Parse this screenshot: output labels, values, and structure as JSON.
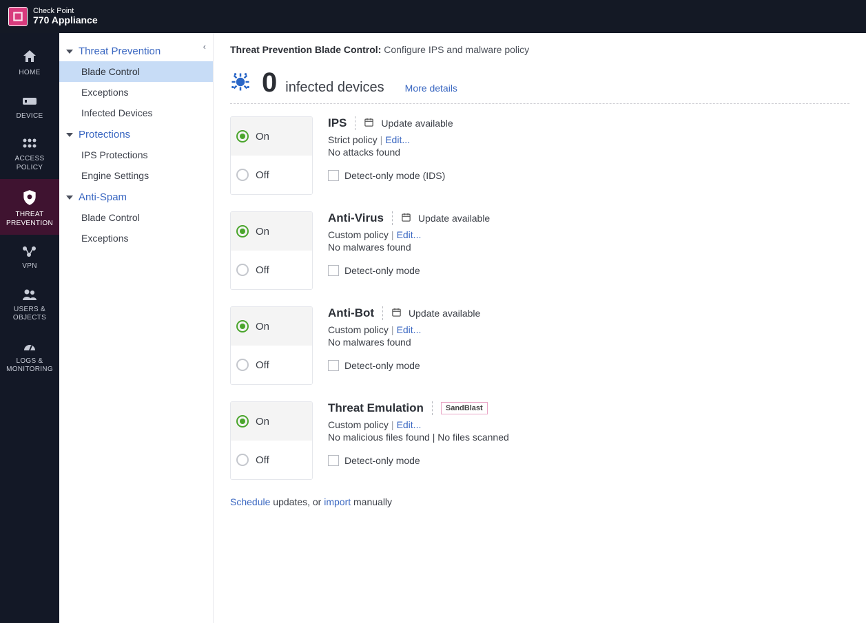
{
  "colors": {
    "topbar_bg": "#141925",
    "mainnav_bg": "#131826",
    "active_nav_bg": "#3f1330",
    "link_color": "#3a67c1",
    "sub_active_bg": "#c7dcf6",
    "radio_selected": "#4aa52c",
    "border": "#e5e7ec"
  },
  "brand": {
    "line1": "Check Point",
    "line2": "770 Appliance"
  },
  "mainnav": [
    {
      "id": "home",
      "label": "HOME"
    },
    {
      "id": "device",
      "label": "DEVICE"
    },
    {
      "id": "access-policy",
      "label": "ACCESS POLICY"
    },
    {
      "id": "threat-prevention",
      "label": "THREAT PREVENTION",
      "active": true
    },
    {
      "id": "vpn",
      "label": "VPN"
    },
    {
      "id": "users-objects",
      "label": "USERS & OBJECTS"
    },
    {
      "id": "logs-monitoring",
      "label": "LOGS & MONITORING"
    }
  ],
  "subnav": {
    "sections": [
      {
        "title": "Threat Prevention",
        "items": [
          {
            "label": "Blade Control",
            "active": true
          },
          {
            "label": "Exceptions"
          },
          {
            "label": "Infected Devices"
          }
        ]
      },
      {
        "title": "Protections",
        "items": [
          {
            "label": "IPS Protections"
          },
          {
            "label": "Engine Settings"
          }
        ]
      },
      {
        "title": "Anti-Spam",
        "items": [
          {
            "label": "Blade Control"
          },
          {
            "label": "Exceptions"
          }
        ]
      }
    ]
  },
  "page": {
    "heading_strong": "Threat Prevention Blade Control:",
    "heading_sub": "Configure IPS and malware policy",
    "infected_count": "0",
    "infected_label": "infected devices",
    "more_details": "More details"
  },
  "toggle_labels": {
    "on": "On",
    "off": "Off"
  },
  "blades": [
    {
      "id": "ips",
      "title": "IPS",
      "update_text": "Update available",
      "policy": "Strict policy",
      "edit": "Edit...",
      "status": "No attacks found",
      "checkbox_label": "Detect-only mode (IDS)",
      "selected": "on"
    },
    {
      "id": "anti-virus",
      "title": "Anti-Virus",
      "update_text": "Update available",
      "policy": "Custom policy",
      "edit": "Edit...",
      "status": "No malwares found",
      "checkbox_label": "Detect-only mode",
      "selected": "on"
    },
    {
      "id": "anti-bot",
      "title": "Anti-Bot",
      "update_text": "Update available",
      "policy": "Custom policy",
      "edit": "Edit...",
      "status": "No malwares found",
      "checkbox_label": "Detect-only mode",
      "selected": "on"
    },
    {
      "id": "threat-emulation",
      "title": "Threat Emulation",
      "badge": "SandBlast",
      "policy": "Custom policy",
      "edit": "Edit...",
      "status": "No malicious files found | No files scanned",
      "checkbox_label": "Detect-only mode",
      "selected": "on"
    }
  ],
  "footer": {
    "schedule": "Schedule",
    "text1": " updates, or ",
    "import": "import",
    "text2": " manually"
  }
}
